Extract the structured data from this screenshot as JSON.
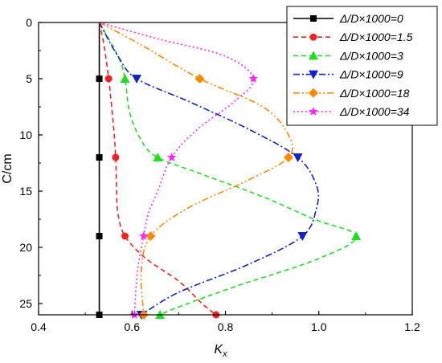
{
  "chart_data": {
    "type": "line",
    "xlabel": "K",
    "xlabel_sub": "x",
    "ylabel": "C/cm",
    "xlim": [
      0.4,
      1.2
    ],
    "ylim": [
      0,
      26
    ],
    "y_inverted": true,
    "xticks": [
      0.4,
      0.6,
      0.8,
      1.0,
      1.2
    ],
    "xtick_labels": [
      "0.4",
      "0.6",
      "0.8",
      "1.0",
      "1.2"
    ],
    "yticks": [
      0,
      5,
      10,
      15,
      20,
      25
    ],
    "ytick_labels": [
      "0",
      "5",
      "10",
      "15",
      "20",
      "25"
    ],
    "grid": false,
    "legend_position": "top-right",
    "series": [
      {
        "name": "Δ/D×1000=0",
        "color": "#000000",
        "dash": "solid",
        "marker": "square",
        "markers": [
          [
            0.53,
            5
          ],
          [
            0.53,
            12
          ],
          [
            0.53,
            19
          ],
          [
            0.53,
            26
          ]
        ],
        "curve": [
          [
            0.53,
            0
          ],
          [
            0.53,
            5
          ],
          [
            0.53,
            12
          ],
          [
            0.53,
            19
          ],
          [
            0.53,
            26
          ]
        ]
      },
      {
        "name": "Δ/D×1000=1.5",
        "color": "#ee2222",
        "dash": "dashed",
        "marker": "circle",
        "markers": [
          [
            0.55,
            5
          ],
          [
            0.565,
            12
          ],
          [
            0.585,
            19
          ],
          [
            0.78,
            26
          ]
        ],
        "curve": [
          [
            0.53,
            0
          ],
          [
            0.54,
            2
          ],
          [
            0.55,
            5
          ],
          [
            0.56,
            9
          ],
          [
            0.565,
            12
          ],
          [
            0.567,
            15
          ],
          [
            0.57,
            17
          ],
          [
            0.585,
            19
          ],
          [
            0.63,
            21
          ],
          [
            0.7,
            23
          ],
          [
            0.75,
            25
          ],
          [
            0.78,
            26
          ]
        ]
      },
      {
        "name": "Δ/D×1000=3",
        "color": "#22dd22",
        "dash": "dashed",
        "marker": "triangle-up",
        "markers": [
          [
            0.585,
            5
          ],
          [
            0.655,
            12
          ],
          [
            1.08,
            19
          ],
          [
            0.66,
            26
          ]
        ],
        "curve": [
          [
            0.53,
            0
          ],
          [
            0.57,
            3
          ],
          [
            0.585,
            5
          ],
          [
            0.595,
            8
          ],
          [
            0.62,
            10.5
          ],
          [
            0.655,
            12
          ],
          [
            0.75,
            13.5
          ],
          [
            0.88,
            15.5
          ],
          [
            0.99,
            17.5
          ],
          [
            1.08,
            19
          ],
          [
            1.0,
            21
          ],
          [
            0.82,
            23.5
          ],
          [
            0.7,
            25.3
          ],
          [
            0.66,
            26
          ]
        ]
      },
      {
        "name": "Δ/D×1000=9",
        "color": "#1122cc",
        "dash": "dashdot",
        "marker": "triangle-down",
        "markers": [
          [
            0.61,
            5
          ],
          [
            0.955,
            12
          ],
          [
            0.965,
            19
          ],
          [
            0.62,
            26
          ]
        ],
        "curve": [
          [
            0.53,
            0
          ],
          [
            0.57,
            3
          ],
          [
            0.61,
            5
          ],
          [
            0.72,
            7
          ],
          [
            0.85,
            9.5
          ],
          [
            0.955,
            12
          ],
          [
            0.995,
            14.5
          ],
          [
            0.995,
            16.5
          ],
          [
            0.965,
            19
          ],
          [
            0.85,
            21.5
          ],
          [
            0.7,
            24
          ],
          [
            0.62,
            26
          ]
        ]
      },
      {
        "name": "Δ/D×1000=18",
        "color": "#ff8800",
        "dash": "dashdotdot",
        "marker": "diamond",
        "markers": [
          [
            0.745,
            5
          ],
          [
            0.935,
            12
          ],
          [
            0.64,
            19
          ],
          [
            0.625,
            26
          ]
        ],
        "curve": [
          [
            0.53,
            0
          ],
          [
            0.62,
            2
          ],
          [
            0.745,
            5
          ],
          [
            0.88,
            7.5
          ],
          [
            0.935,
            10
          ],
          [
            0.935,
            12
          ],
          [
            0.85,
            14
          ],
          [
            0.72,
            16.5
          ],
          [
            0.64,
            19
          ],
          [
            0.62,
            22
          ],
          [
            0.625,
            26
          ]
        ]
      },
      {
        "name": "Δ/D×1000=34",
        "color": "#ff22ff",
        "dash": "dotted",
        "marker": "star",
        "markers": [
          [
            0.86,
            5
          ],
          [
            0.685,
            12
          ],
          [
            0.625,
            19
          ],
          [
            0.605,
            26
          ]
        ],
        "curve": [
          [
            0.53,
            0
          ],
          [
            0.66,
            1.5
          ],
          [
            0.8,
            3
          ],
          [
            0.86,
            5
          ],
          [
            0.82,
            7
          ],
          [
            0.74,
            9.5
          ],
          [
            0.685,
            12
          ],
          [
            0.655,
            15
          ],
          [
            0.635,
            17
          ],
          [
            0.625,
            19
          ],
          [
            0.612,
            22
          ],
          [
            0.605,
            26
          ]
        ]
      }
    ]
  }
}
